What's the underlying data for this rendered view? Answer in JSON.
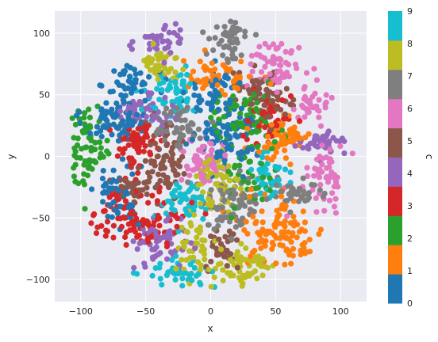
{
  "chart_data": {
    "type": "scatter",
    "title": "",
    "xlabel": "x",
    "ylabel": "y",
    "colorbar_label": "c",
    "xlim": [
      -120,
      120
    ],
    "ylim": [
      -118,
      118
    ],
    "x_ticks": [
      -100,
      -50,
      0,
      50,
      100
    ],
    "y_ticks": [
      -100,
      -50,
      0,
      50,
      100
    ],
    "colorbar_ticks": [
      0,
      1,
      2,
      3,
      4,
      5,
      6,
      7,
      8,
      9
    ],
    "grid": true,
    "colormap": [
      "#1f77b4",
      "#ff7f0e",
      "#2ca02c",
      "#d62728",
      "#9467bd",
      "#8c564b",
      "#e377c2",
      "#7f7f7f",
      "#bcbd22",
      "#17becf"
    ],
    "background": "#eaeaf2",
    "clusters": [
      {
        "c": 0,
        "center": [
          -75,
          30
        ],
        "spread": [
          12,
          9
        ],
        "n": 70
      },
      {
        "c": 0,
        "center": [
          -72,
          -30
        ],
        "spread": [
          9,
          14
        ],
        "n": 55
      },
      {
        "c": 0,
        "center": [
          15,
          15
        ],
        "spread": [
          12,
          12
        ],
        "n": 80
      },
      {
        "c": 0,
        "center": [
          5,
          45
        ],
        "spread": [
          12,
          12
        ],
        "n": 60
      },
      {
        "c": 0,
        "center": [
          -60,
          60
        ],
        "spread": [
          10,
          8
        ],
        "n": 40
      },
      {
        "c": 1,
        "center": [
          55,
          15
        ],
        "spread": [
          11,
          10
        ],
        "n": 70
      },
      {
        "c": 1,
        "center": [
          55,
          -60
        ],
        "spread": [
          17,
          15
        ],
        "n": 110
      },
      {
        "c": 1,
        "center": [
          5,
          65
        ],
        "spread": [
          14,
          7
        ],
        "n": 55
      },
      {
        "c": 2,
        "center": [
          -95,
          10
        ],
        "spread": [
          9,
          16
        ],
        "n": 70
      },
      {
        "c": 2,
        "center": [
          25,
          30
        ],
        "spread": [
          14,
          12
        ],
        "n": 70
      },
      {
        "c": 2,
        "center": [
          30,
          -20
        ],
        "spread": [
          9,
          12
        ],
        "n": 40
      },
      {
        "c": 3,
        "center": [
          -55,
          -50
        ],
        "spread": [
          18,
          12
        ],
        "n": 110
      },
      {
        "c": 3,
        "center": [
          -55,
          10
        ],
        "spread": [
          11,
          10
        ],
        "n": 60
      },
      {
        "c": 3,
        "center": [
          45,
          30
        ],
        "spread": [
          9,
          10
        ],
        "n": 45
      },
      {
        "c": 4,
        "center": [
          -40,
          95
        ],
        "spread": [
          11,
          7
        ],
        "n": 45
      },
      {
        "c": 4,
        "center": [
          -55,
          35
        ],
        "spread": [
          10,
          7
        ],
        "n": 60
      },
      {
        "c": 4,
        "center": [
          -35,
          -70
        ],
        "spread": [
          11,
          9
        ],
        "n": 55
      },
      {
        "c": 4,
        "center": [
          85,
          10
        ],
        "spread": [
          9,
          6
        ],
        "n": 40
      },
      {
        "c": 5,
        "center": [
          -35,
          0
        ],
        "spread": [
          7,
          16
        ],
        "n": 75
      },
      {
        "c": 5,
        "center": [
          -60,
          -25
        ],
        "spread": [
          9,
          8
        ],
        "n": 35
      },
      {
        "c": 5,
        "center": [
          35,
          55
        ],
        "spread": [
          9,
          8
        ],
        "n": 40
      },
      {
        "c": 5,
        "center": [
          10,
          -75
        ],
        "spread": [
          7,
          9
        ],
        "n": 35
      },
      {
        "c": 5,
        "center": [
          50,
          40
        ],
        "spread": [
          7,
          6
        ],
        "n": 25
      },
      {
        "c": 6,
        "center": [
          -5,
          -5
        ],
        "spread": [
          9,
          10
        ],
        "n": 60
      },
      {
        "c": 6,
        "center": [
          50,
          75
        ],
        "spread": [
          12,
          10
        ],
        "n": 60
      },
      {
        "c": 6,
        "center": [
          90,
          -15
        ],
        "spread": [
          8,
          12
        ],
        "n": 55
      },
      {
        "c": 6,
        "center": [
          75,
          40
        ],
        "spread": [
          8,
          8
        ],
        "n": 35
      },
      {
        "c": 7,
        "center": [
          15,
          95
        ],
        "spread": [
          8,
          9
        ],
        "n": 50
      },
      {
        "c": 7,
        "center": [
          -25,
          25
        ],
        "spread": [
          10,
          9
        ],
        "n": 50
      },
      {
        "c": 7,
        "center": [
          15,
          -40
        ],
        "spread": [
          12,
          12
        ],
        "n": 75
      },
      {
        "c": 7,
        "center": [
          65,
          -30
        ],
        "spread": [
          11,
          7
        ],
        "n": 45
      },
      {
        "c": 8,
        "center": [
          -40,
          75
        ],
        "spread": [
          8,
          8
        ],
        "n": 40
      },
      {
        "c": 8,
        "center": [
          5,
          -25
        ],
        "spread": [
          9,
          14
        ],
        "n": 60
      },
      {
        "c": 8,
        "center": [
          25,
          -90
        ],
        "spread": [
          13,
          9
        ],
        "n": 60
      },
      {
        "c": 8,
        "center": [
          -15,
          -75
        ],
        "spread": [
          7,
          14
        ],
        "n": 45
      },
      {
        "c": 9,
        "center": [
          -30,
          50
        ],
        "spread": [
          11,
          9
        ],
        "n": 60
      },
      {
        "c": 9,
        "center": [
          -20,
          -35
        ],
        "spread": [
          10,
          8
        ],
        "n": 50
      },
      {
        "c": 9,
        "center": [
          -25,
          -95
        ],
        "spread": [
          13,
          5
        ],
        "n": 40
      },
      {
        "c": 9,
        "center": [
          45,
          -15
        ],
        "spread": [
          7,
          10
        ],
        "n": 40
      }
    ]
  }
}
